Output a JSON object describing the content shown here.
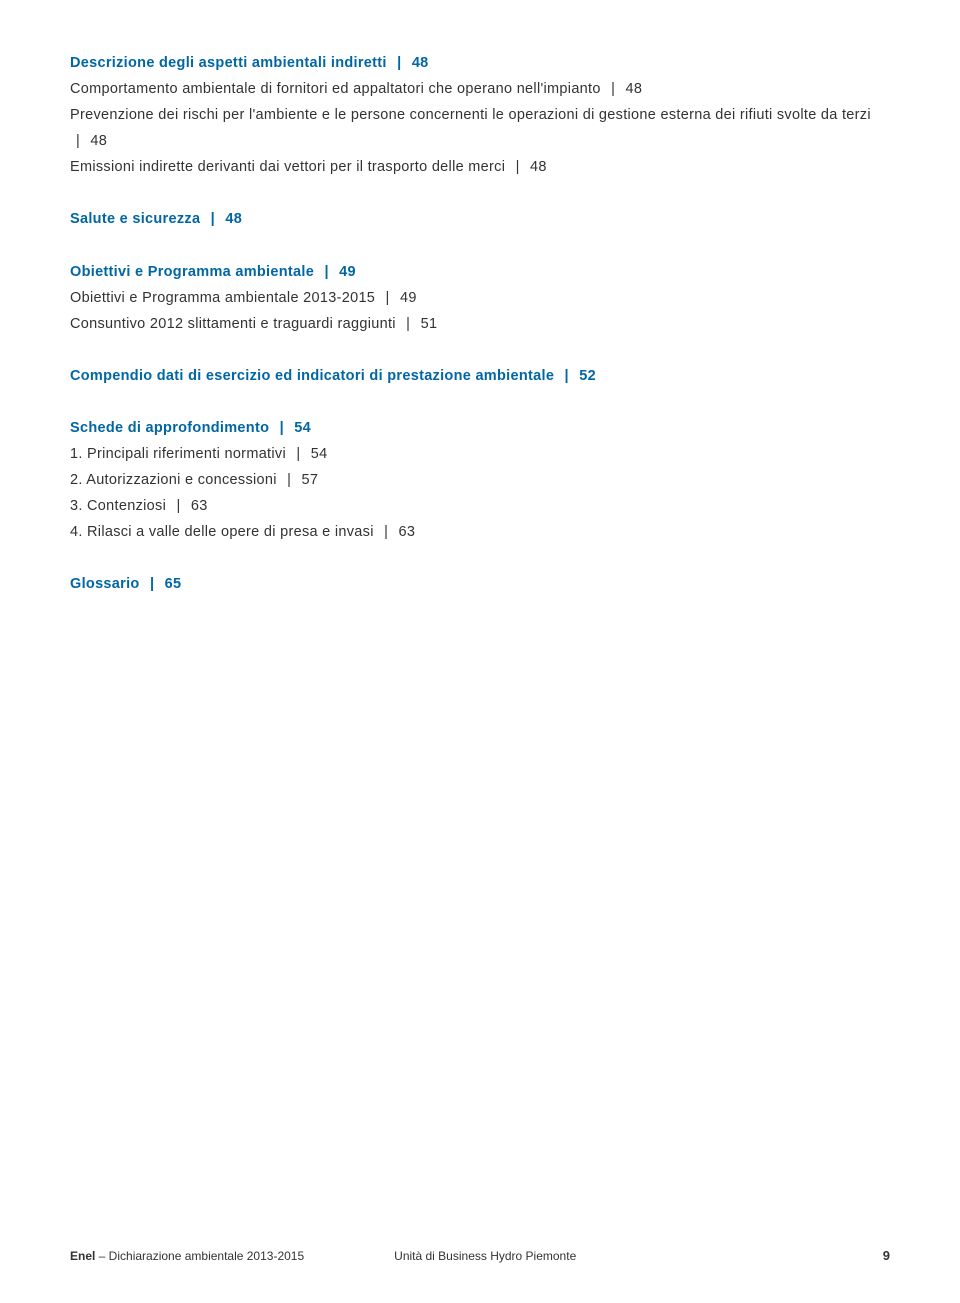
{
  "toc": {
    "s1": {
      "heading": "Descrizione degli aspetti ambientali indiretti",
      "heading_page": "48",
      "items": [
        {
          "label": "Comportamento ambientale di fornitori ed appaltatori che operano nell'impianto",
          "page": "48"
        },
        {
          "label": "Prevenzione dei rischi per l'ambiente e le persone concernenti le operazioni di gestione esterna dei rifiuti svolte da terzi",
          "page": "48"
        },
        {
          "label": "Emissioni indirette derivanti dai vettori per il trasporto delle merci",
          "page": "48"
        }
      ]
    },
    "s2": {
      "heading": "Salute e sicurezza",
      "heading_page": "48"
    },
    "s3": {
      "heading": "Obiettivi e Programma ambientale",
      "heading_page": "49",
      "items": [
        {
          "label": "Obiettivi e Programma ambientale 2013-2015",
          "page": "49"
        },
        {
          "label": "Consuntivo 2012 slittamenti e traguardi raggiunti",
          "page": "51"
        }
      ]
    },
    "s4": {
      "heading": "Compendio dati di esercizio ed indicatori di prestazione ambientale",
      "heading_page": "52"
    },
    "s5": {
      "heading": "Schede di approfondimento",
      "heading_page": "54",
      "items": [
        {
          "label": "1. Principali riferimenti normativi",
          "page": "54"
        },
        {
          "label": "2. Autorizzazioni e concessioni",
          "page": "57"
        },
        {
          "label": "3. Contenziosi",
          "page": "63"
        },
        {
          "label": "4. Rilasci a valle delle opere di presa e invasi",
          "page": "63"
        }
      ]
    },
    "s6": {
      "heading": "Glossario",
      "heading_page": "65"
    }
  },
  "footer": {
    "brand": "Enel",
    "doc_title": " – Dichiarazione ambientale 2013-2015",
    "unit": "Unità di Business Hydro Piemonte",
    "page_number": "9"
  },
  "style": {
    "heading_color": "#0066a4",
    "text_color": "#333333",
    "background_color": "#ffffff",
    "body_fontsize": 14.5,
    "footer_fontsize": 12
  }
}
